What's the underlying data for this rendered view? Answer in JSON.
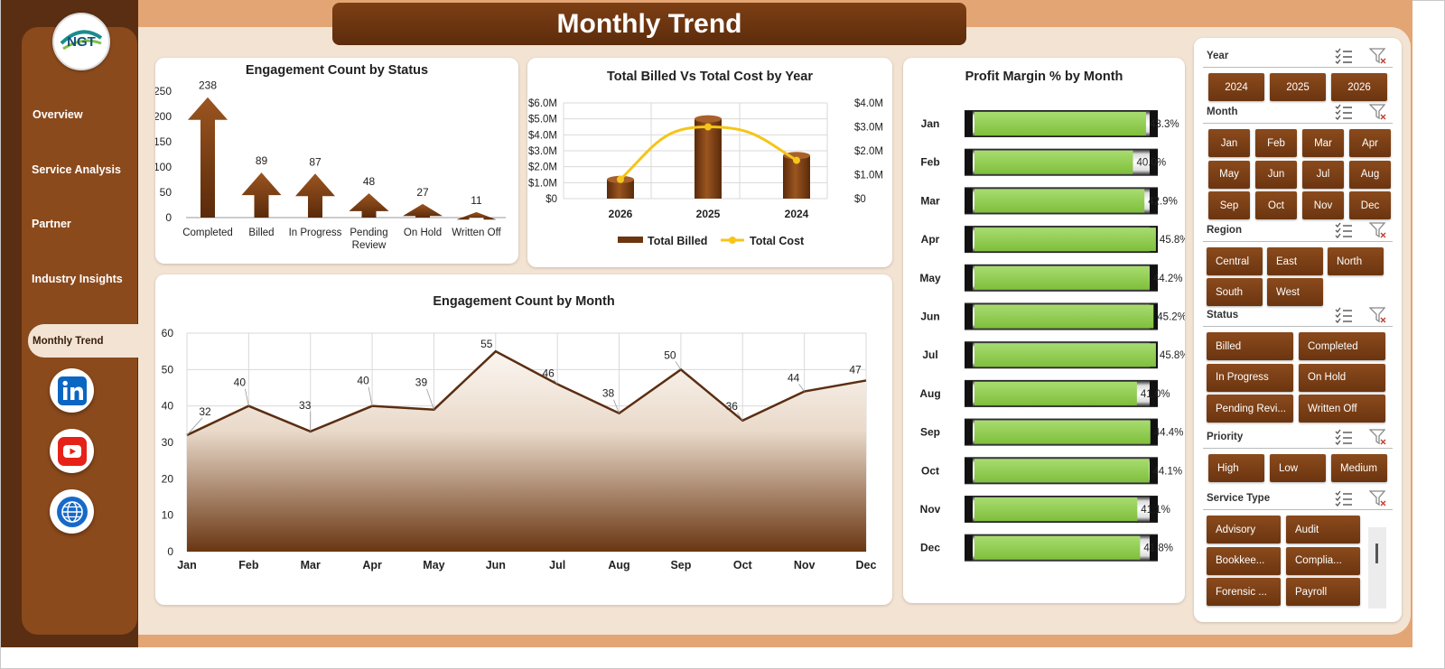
{
  "page": {
    "title": "Monthly Trend"
  },
  "logo": {
    "text": "NGT",
    "icon": "ngt-logo-icon"
  },
  "nav": {
    "items": [
      "Overview",
      "Service Analysis",
      "Partner",
      "Industry Insights"
    ],
    "active": "Monthly Trend"
  },
  "social": [
    {
      "name": "linkedin-icon",
      "label": "in",
      "color": "#0a66c2"
    },
    {
      "name": "youtube-icon",
      "color": "#e62117"
    },
    {
      "name": "website-globe-icon",
      "color": "#1769c9"
    }
  ],
  "colors": {
    "brown_dark": "#5a2e12",
    "brown": "#8b4a1c",
    "cream": "#f3e3d3",
    "orange": "#e3a574",
    "gold": "#f5c518",
    "green": "#92d050"
  },
  "charts": {
    "status": {
      "title": "Engagement Count by Status",
      "y_ticks": [
        "250",
        "200",
        "150",
        "100",
        "50",
        "0"
      ],
      "categories": [
        "Completed",
        "Billed",
        "In Progress",
        "Pending Review",
        "On Hold",
        "Written Off"
      ],
      "category_lines": [
        [
          "Completed"
        ],
        [
          "Billed"
        ],
        [
          "In Progress"
        ],
        [
          "Pending",
          "Review"
        ],
        [
          "On Hold"
        ],
        [
          "Written Off"
        ]
      ],
      "values": [
        238,
        89,
        87,
        48,
        27,
        11
      ]
    },
    "billed": {
      "title": "Total Billed Vs Total Cost by Year",
      "y_left_ticks": [
        "$6.0M",
        "$5.0M",
        "$4.0M",
        "$3.0M",
        "$2.0M",
        "$1.0M",
        "$0"
      ],
      "y_right_ticks": [
        "$4.0M",
        "$3.0M",
        "$2.0M",
        "$1.0M",
        "$0"
      ],
      "categories": [
        "2026",
        "2025",
        "2024"
      ],
      "legend": [
        "Total Billed",
        "Total Cost"
      ]
    },
    "month": {
      "title": "Engagement  Count  by Month",
      "y_ticks": [
        "60",
        "50",
        "40",
        "30",
        "20",
        "10",
        "0"
      ],
      "categories": [
        "Jan",
        "Feb",
        "Mar",
        "Apr",
        "May",
        "Jun",
        "Jul",
        "Aug",
        "Sep",
        "Oct",
        "Nov",
        "Dec"
      ],
      "values": [
        32,
        40,
        33,
        40,
        39,
        55,
        46,
        38,
        50,
        36,
        44,
        47
      ]
    },
    "margin": {
      "title": "Profit Margin % by Month",
      "categories": [
        "Jan",
        "Feb",
        "Mar",
        "Apr",
        "May",
        "Jun",
        "Jul",
        "Aug",
        "Sep",
        "Oct",
        "Nov",
        "Dec"
      ],
      "labels": [
        "43.3%",
        "40.0%",
        "42.9%",
        "45.8%",
        "44.2%",
        "45.2%",
        "45.8%",
        "41.0%",
        "44.4%",
        "44.1%",
        "41.1%",
        "41.8%"
      ]
    }
  },
  "chart_data": [
    {
      "type": "bar",
      "title": "Engagement Count by Status",
      "categories": [
        "Completed",
        "Billed",
        "In Progress",
        "Pending Review",
        "On Hold",
        "Written Off"
      ],
      "values": [
        238,
        89,
        87,
        48,
        27,
        11
      ],
      "ylim": [
        0,
        250
      ]
    },
    {
      "type": "bar",
      "title": "Total Billed Vs Total Cost by Year",
      "categories": [
        "2026",
        "2025",
        "2024"
      ],
      "series": [
        {
          "name": "Total Billed",
          "type": "bar",
          "axis": "left",
          "values": [
            1.2,
            5.0,
            2.7
          ]
        },
        {
          "name": "Total Cost",
          "type": "line",
          "axis": "right",
          "values": [
            0.8,
            3.0,
            1.6
          ]
        }
      ],
      "ylim_left": [
        0,
        6.0
      ],
      "ylim_right": [
        0,
        4.0
      ],
      "legend": "bottom"
    },
    {
      "type": "area",
      "title": "Engagement  Count  by Month",
      "categories": [
        "Jan",
        "Feb",
        "Mar",
        "Apr",
        "May",
        "Jun",
        "Jul",
        "Aug",
        "Sep",
        "Oct",
        "Nov",
        "Dec"
      ],
      "values": [
        32,
        40,
        33,
        40,
        39,
        55,
        46,
        38,
        50,
        36,
        44,
        47
      ],
      "ylim": [
        0,
        60
      ],
      "grid": true
    },
    {
      "type": "bar",
      "title": "Profit Margin % by Month",
      "categories": [
        "Jan",
        "Feb",
        "Mar",
        "Apr",
        "May",
        "Jun",
        "Jul",
        "Aug",
        "Sep",
        "Oct",
        "Nov",
        "Dec"
      ],
      "values": [
        43.3,
        40.0,
        42.9,
        45.8,
        44.2,
        45.2,
        45.8,
        41.0,
        44.4,
        44.1,
        41.1,
        41.8
      ],
      "unit": "%"
    }
  ],
  "slicers": {
    "year": {
      "label": "Year",
      "items": [
        "2024",
        "2025",
        "2026"
      ]
    },
    "month": {
      "label": "Month",
      "items": [
        "Jan",
        "Feb",
        "Mar",
        "Apr",
        "May",
        "Jun",
        "Jul",
        "Aug",
        "Sep",
        "Oct",
        "Nov",
        "Dec"
      ]
    },
    "region": {
      "label": "Region",
      "items": [
        "Central",
        "East",
        "North",
        "South",
        "West"
      ]
    },
    "status": {
      "label": "Status",
      "items": [
        "Billed",
        "Completed",
        "In Progress",
        "On Hold",
        "Pending Revi...",
        "Written Off"
      ]
    },
    "priority": {
      "label": "Priority",
      "items": [
        "High",
        "Low",
        "Medium"
      ]
    },
    "service_type": {
      "label": "Service Type",
      "items": [
        "Advisory",
        "Audit",
        "Bookkee...",
        "Complia...",
        "Forensic ...",
        "Payroll"
      ]
    },
    "icons": [
      "multi-select-icon",
      "clear-filter-icon"
    ]
  }
}
